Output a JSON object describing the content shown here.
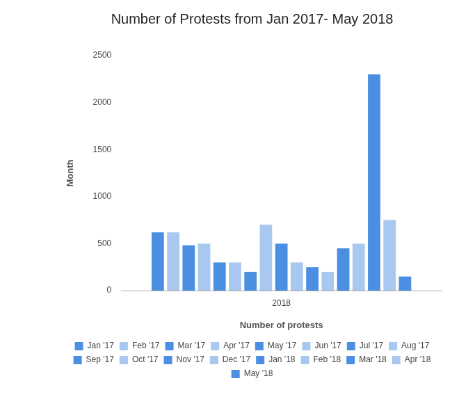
{
  "chart_data": {
    "type": "bar",
    "title": "Number of Protests from Jan 2017- May 2018",
    "x_label": "Number of protests",
    "y_label": "Month",
    "categories": [
      "2018"
    ],
    "series": [
      {
        "name": "Jan '17",
        "color": "#4a8fe2",
        "values": [
          620
        ]
      },
      {
        "name": "Feb '17",
        "color": "#a9c8f0",
        "values": [
          620
        ]
      },
      {
        "name": "Mar '17",
        "color": "#4a8fe2",
        "values": [
          480
        ]
      },
      {
        "name": "Apr '17",
        "color": "#a9c8f0",
        "values": [
          500
        ]
      },
      {
        "name": "May '17",
        "color": "#4a8fe2",
        "values": [
          300
        ]
      },
      {
        "name": "Jun '17",
        "color": "#a9c8f0",
        "values": [
          300
        ]
      },
      {
        "name": "Jul '17",
        "color": "#4a8fe2",
        "values": [
          200
        ]
      },
      {
        "name": "Aug '17",
        "color": "#a9c8f0",
        "values": [
          700
        ]
      },
      {
        "name": "Sep '17",
        "color": "#4a8fe2",
        "values": [
          500
        ]
      },
      {
        "name": "Oct '17",
        "color": "#a9c8f0",
        "values": [
          300
        ]
      },
      {
        "name": "Nov '17",
        "color": "#4a8fe2",
        "values": [
          250
        ]
      },
      {
        "name": "Dec '17",
        "color": "#a9c8f0",
        "values": [
          200
        ]
      },
      {
        "name": "Jan '18",
        "color": "#4a8fe2",
        "values": [
          450
        ]
      },
      {
        "name": "Feb '18",
        "color": "#a9c8f0",
        "values": [
          500
        ]
      },
      {
        "name": "Mar '18",
        "color": "#4a8fe2",
        "values": [
          2300
        ]
      },
      {
        "name": "Apr '18",
        "color": "#a9c8f0",
        "values": [
          750
        ]
      },
      {
        "name": "May '18",
        "color": "#4a8fe2",
        "values": [
          150
        ]
      }
    ],
    "ylim": [
      0,
      2500
    ],
    "yticks": [
      0,
      500,
      1000,
      1500,
      2000,
      2500
    ],
    "grid": false,
    "legend": "bottom"
  }
}
